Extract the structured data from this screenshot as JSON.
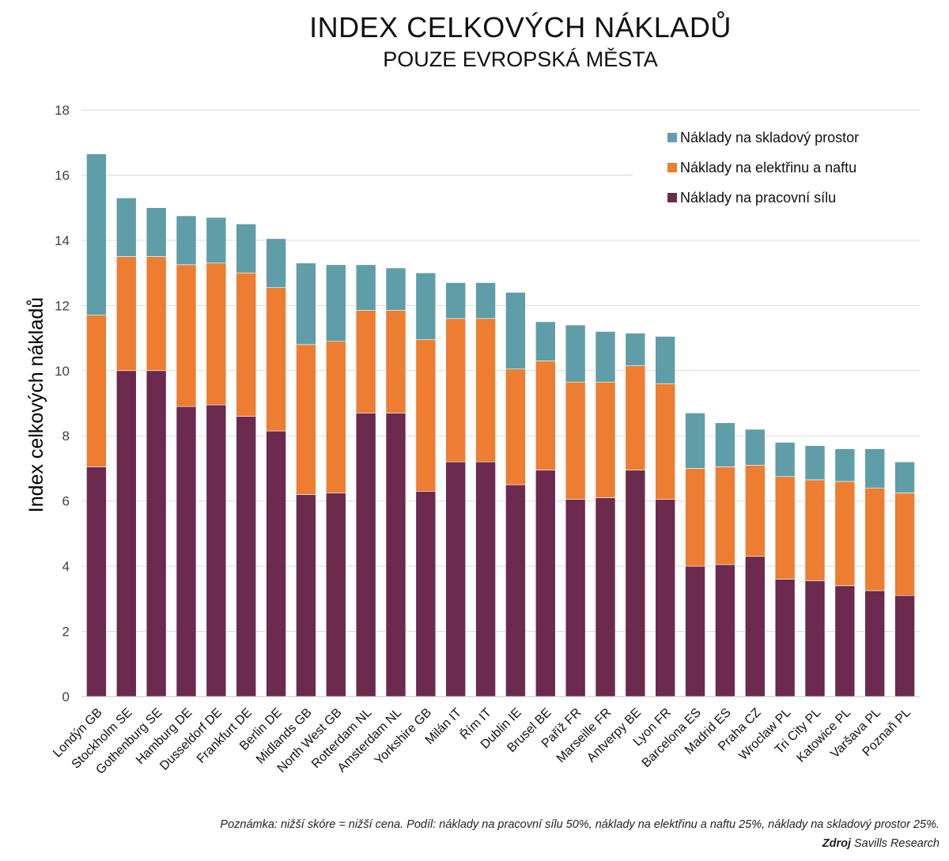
{
  "chart_data": {
    "type": "bar",
    "stacked": true,
    "title": "INDEX CELKOVÝCH NÁKLADŮ",
    "subtitle": "POUZE EVROPSKÁ MĚSTA",
    "ylabel": "Index celkových nákladů",
    "xlabel": "",
    "ylim": [
      0,
      18
    ],
    "yticks": [
      0,
      2,
      4,
      6,
      8,
      10,
      12,
      14,
      16,
      18
    ],
    "grid": true,
    "legend_position": "top-right",
    "categories": [
      "Londýn GB",
      "Stockholm SE",
      "Gothenburg SE",
      "Hamburg DE",
      "Dusseldorf DE",
      "Frankfurt DE",
      "Berlin DE",
      "Midlands GB",
      "North West GB",
      "Rotterdam NL",
      "Amsterdam NL",
      "Yorkshire GB",
      "Milán IT",
      "Řím IT",
      "Dublin IE",
      "Brusel BE",
      "Paříž FR",
      "Marseille FR",
      "Antverpy BE",
      "Lyon FR",
      "Barcelona ES",
      "Madrid ES",
      "Praha CZ",
      "Wroclaw PL",
      "Tri City PL",
      "Katowice PL",
      "Varšava PL",
      "Poznaň PL"
    ],
    "series": [
      {
        "name": "Náklady na pracovní sílu",
        "color": "#6b2a4e",
        "values": [
          7.05,
          10.0,
          10.0,
          8.9,
          8.95,
          8.6,
          8.15,
          6.2,
          6.25,
          8.7,
          8.7,
          6.3,
          7.2,
          7.2,
          6.5,
          6.95,
          6.05,
          6.1,
          6.95,
          6.05,
          4.0,
          4.05,
          4.3,
          3.6,
          3.55,
          3.4,
          3.25,
          3.1
        ]
      },
      {
        "name": "Náklady na elektřinu a naftu",
        "color": "#ed7d31",
        "values": [
          4.65,
          3.5,
          3.5,
          4.35,
          4.35,
          4.4,
          4.4,
          4.6,
          4.65,
          3.15,
          3.15,
          4.65,
          4.4,
          4.4,
          3.55,
          3.35,
          3.6,
          3.55,
          3.2,
          3.55,
          3.0,
          3.0,
          2.8,
          3.15,
          3.1,
          3.2,
          3.15,
          3.15
        ]
      },
      {
        "name": "Náklady na skladový prostor",
        "color": "#5f9ea8",
        "values": [
          4.95,
          1.8,
          1.5,
          1.5,
          1.4,
          1.5,
          1.5,
          2.5,
          2.35,
          1.4,
          1.3,
          2.05,
          1.1,
          1.1,
          2.35,
          1.2,
          1.75,
          1.55,
          1.0,
          1.45,
          1.7,
          1.35,
          1.1,
          1.05,
          1.05,
          1.0,
          1.2,
          0.95
        ]
      }
    ],
    "legend_order": [
      "Náklady na skladový prostor",
      "Náklady na elektřinu a naftu",
      "Náklady na pracovní sílu"
    ]
  },
  "footer": {
    "note": "Poznámka: nižší skóre = nižší cena. Podíl: náklady na pracovní sílu 50%, náklady na elektřinu a naftu 25%, náklady na skladový prostor 25%.",
    "source_label": "Zdroj",
    "source_text": " Savills Research"
  }
}
